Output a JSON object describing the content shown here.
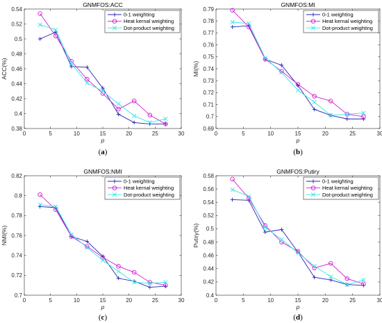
{
  "chart_data": [
    {
      "type": "line",
      "title": "GNMFOS:ACC",
      "xlabel": "p",
      "ylabel": "ACC(%)",
      "caption": "a",
      "xlim": [
        0,
        30
      ],
      "ylim": [
        0.38,
        0.54
      ],
      "xticks": [
        0,
        5,
        10,
        15,
        20,
        25,
        30
      ],
      "yticks": [
        0.38,
        0.4,
        0.42,
        0.44,
        0.46,
        0.48,
        0.5,
        0.52,
        0.54
      ],
      "ytick_labels": [
        "0.38",
        "0.4",
        "0.42",
        "0.44",
        "0.46",
        "0.48",
        "0.5",
        "0.52",
        "0.54"
      ],
      "x": [
        3,
        6,
        9,
        12,
        15,
        18,
        21,
        24,
        27
      ],
      "legend_position": "top-right",
      "series": [
        {
          "name": "0-1 weighting",
          "values": [
            0.5,
            0.509,
            0.463,
            0.462,
            0.434,
            0.399,
            0.388,
            0.386,
            0.386
          ]
        },
        {
          "name": "Heat kernal weighting",
          "values": [
            0.534,
            0.504,
            0.47,
            0.446,
            0.427,
            0.406,
            0.417,
            0.398,
            0.386
          ]
        },
        {
          "name": "Dot-product weighting",
          "values": [
            0.519,
            0.512,
            0.467,
            0.441,
            0.43,
            0.413,
            0.397,
            0.388,
            0.393
          ]
        }
      ]
    },
    {
      "type": "line",
      "title": "GNMFOS:MI",
      "xlabel": "p",
      "ylabel": "MI(%)",
      "caption": "b",
      "xlim": [
        0,
        30
      ],
      "ylim": [
        0.69,
        0.79
      ],
      "xticks": [
        0,
        5,
        10,
        15,
        20,
        25,
        30
      ],
      "yticks": [
        0.69,
        0.7,
        0.71,
        0.72,
        0.73,
        0.74,
        0.75,
        0.76,
        0.77,
        0.78,
        0.79
      ],
      "ytick_labels": [
        "0.69",
        "0.7",
        "0.71",
        "0.72",
        "0.73",
        "0.74",
        "0.75",
        "0.76",
        "0.77",
        "0.78",
        "0.79"
      ],
      "x": [
        3,
        6,
        9,
        12,
        15,
        18,
        21,
        24,
        27
      ],
      "legend_position": "top-right",
      "series": [
        {
          "name": "0-1 weighting",
          "values": [
            0.775,
            0.776,
            0.748,
            0.743,
            0.726,
            0.706,
            0.701,
            0.698,
            0.698
          ]
        },
        {
          "name": "Heat kernal weighting",
          "values": [
            0.789,
            0.775,
            0.748,
            0.738,
            0.727,
            0.717,
            0.713,
            0.702,
            0.7
          ]
        },
        {
          "name": "Dot-product weighting",
          "values": [
            0.779,
            0.778,
            0.749,
            0.737,
            0.722,
            0.712,
            0.701,
            0.702,
            0.703
          ]
        }
      ]
    },
    {
      "type": "line",
      "title": "GNMFOS:NMI",
      "xlabel": "p",
      "ylabel": "NMI(%)",
      "caption": "c",
      "xlim": [
        0,
        30
      ],
      "ylim": [
        0.7,
        0.82
      ],
      "xticks": [
        0,
        5,
        10,
        15,
        20,
        25,
        30
      ],
      "yticks": [
        0.7,
        0.72,
        0.74,
        0.76,
        0.78,
        0.8,
        0.82
      ],
      "ytick_labels": [
        "0.7",
        "0.72",
        "0.74",
        "0.76",
        "0.78",
        "0.8",
        "0.82"
      ],
      "x": [
        3,
        6,
        9,
        12,
        15,
        18,
        21,
        24,
        27
      ],
      "legend_position": "top-right",
      "series": [
        {
          "name": "0-1 weighting",
          "values": [
            0.789,
            0.788,
            0.759,
            0.754,
            0.739,
            0.717,
            0.714,
            0.708,
            0.709
          ]
        },
        {
          "name": "Heat kernal weighting",
          "values": [
            0.801,
            0.786,
            0.759,
            0.749,
            0.738,
            0.729,
            0.723,
            0.713,
            0.71
          ]
        },
        {
          "name": "Dot-product weighting",
          "values": [
            0.791,
            0.789,
            0.761,
            0.748,
            0.735,
            0.724,
            0.713,
            0.712,
            0.713
          ]
        }
      ]
    },
    {
      "type": "line",
      "title": "GNMFOS:Putiry",
      "xlabel": "p",
      "ylabel": "Putiry(%)",
      "caption": "d",
      "xlim": [
        0,
        30
      ],
      "ylim": [
        0.4,
        0.58
      ],
      "xticks": [
        0,
        5,
        10,
        15,
        20,
        25,
        30
      ],
      "yticks": [
        0.4,
        0.42,
        0.44,
        0.46,
        0.48,
        0.5,
        0.52,
        0.54,
        0.56,
        0.58
      ],
      "ytick_labels": [
        "0.4",
        "0.42",
        "0.44",
        "0.46",
        "0.48",
        "0.5",
        "0.52",
        "0.54",
        "0.56",
        "0.58"
      ],
      "x": [
        3,
        6,
        9,
        12,
        15,
        18,
        21,
        24,
        27
      ],
      "legend_position": "top-right",
      "series": [
        {
          "name": "0-1 weighting",
          "values": [
            0.544,
            0.543,
            0.495,
            0.499,
            0.465,
            0.427,
            0.423,
            0.416,
            0.415
          ]
        },
        {
          "name": "Heat kernal weighting",
          "values": [
            0.575,
            0.546,
            0.505,
            0.48,
            0.466,
            0.441,
            0.448,
            0.425,
            0.417
          ]
        },
        {
          "name": "Dot-product weighting",
          "values": [
            0.559,
            0.549,
            0.502,
            0.484,
            0.464,
            0.444,
            0.428,
            0.416,
            0.423
          ]
        }
      ]
    }
  ],
  "style": {
    "series_colors": [
      "#2323b4",
      "#d21ed2",
      "#32e6e6"
    ],
    "series_markers": [
      "plus",
      "circle",
      "x-mark"
    ],
    "axis_color": "#262626"
  }
}
